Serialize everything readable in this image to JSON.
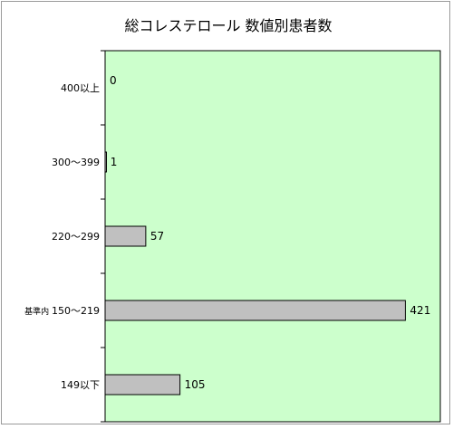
{
  "chart_data": {
    "type": "bar",
    "orientation": "horizontal",
    "title": "総コレステロール 数値別患者数",
    "categories": [
      "400以上",
      "300〜399",
      "220〜299",
      "基準内 150〜219",
      "149以下"
    ],
    "values": [
      0,
      1,
      57,
      421,
      105
    ],
    "xlim": [
      0,
      470
    ],
    "grid": false,
    "plot_background": "#ccffcc",
    "bar_color": "#c0c0c0",
    "bar_border_color": "#000000"
  }
}
